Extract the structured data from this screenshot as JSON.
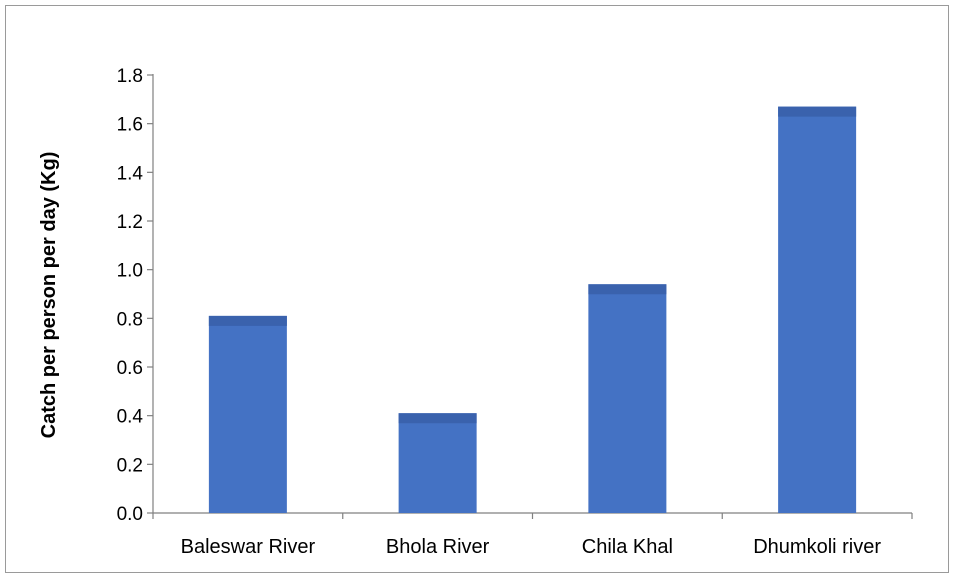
{
  "chart_data": {
    "type": "bar",
    "categories": [
      "Baleswar River",
      "Bhola River",
      "Chila Khal",
      "Dhumkoli river"
    ],
    "values": [
      0.81,
      0.41,
      0.94,
      1.67
    ],
    "title": "",
    "xlabel": "",
    "ylabel": "Catch per person per day (Kg)",
    "ylim": [
      0,
      1.8
    ],
    "yticks": [
      "0.0",
      "0.2",
      "0.4",
      "0.6",
      "0.8",
      "1.0",
      "1.2",
      "1.4",
      "1.6",
      "1.8"
    ],
    "grid": false,
    "legend": "none",
    "bar_color": "#4472c4",
    "bar_top_color": "#3a62ad"
  }
}
